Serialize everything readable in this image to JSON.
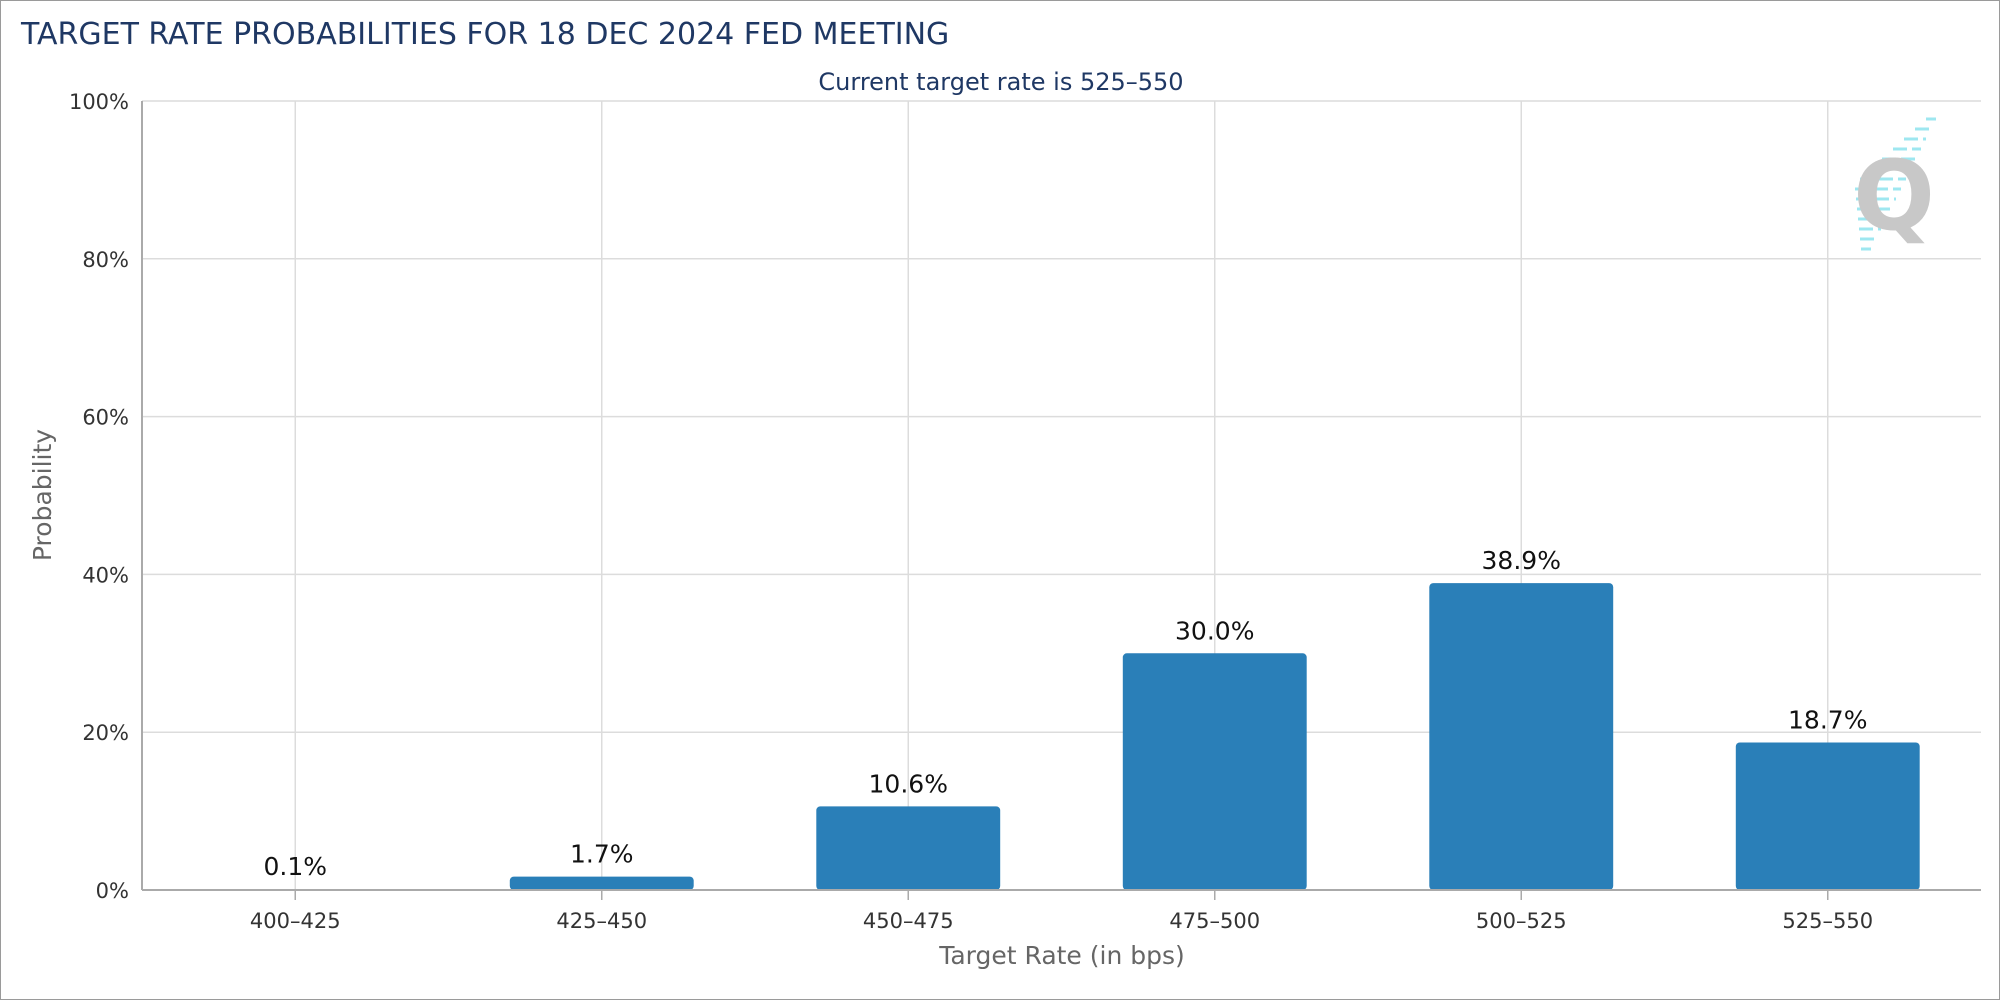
{
  "chart_data": {
    "type": "bar",
    "title": "TARGET RATE PROBABILITIES FOR 18 DEC 2024 FED MEETING",
    "subtitle": "Current target rate is 525–550",
    "xlabel": "Target Rate (in bps)",
    "ylabel": "Probability",
    "categories": [
      "400–425",
      "425–450",
      "450–475",
      "475–500",
      "500–525",
      "525–550"
    ],
    "values": [
      0.1,
      1.7,
      10.6,
      30.0,
      38.9,
      18.7
    ],
    "data_labels": [
      "0.1%",
      "1.7%",
      "10.6%",
      "30.0%",
      "38.9%",
      "18.7%"
    ],
    "ylim": [
      0,
      100
    ],
    "yticks": [
      0,
      20,
      40,
      60,
      80,
      100
    ],
    "ytick_labels": [
      "0%",
      "20%",
      "40%",
      "60%",
      "80%",
      "100%"
    ],
    "grid": true,
    "colors": {
      "bar": "#2a7fb8",
      "title": "#1f3864",
      "grid": "#dcdcdc",
      "axis": "#aaaaaa",
      "tick_text": "#333333",
      "axis_label": "#666666",
      "data_label": "#111111",
      "logo_letter": "#c8c8c8",
      "logo_lines": "#8ee3ee"
    }
  }
}
